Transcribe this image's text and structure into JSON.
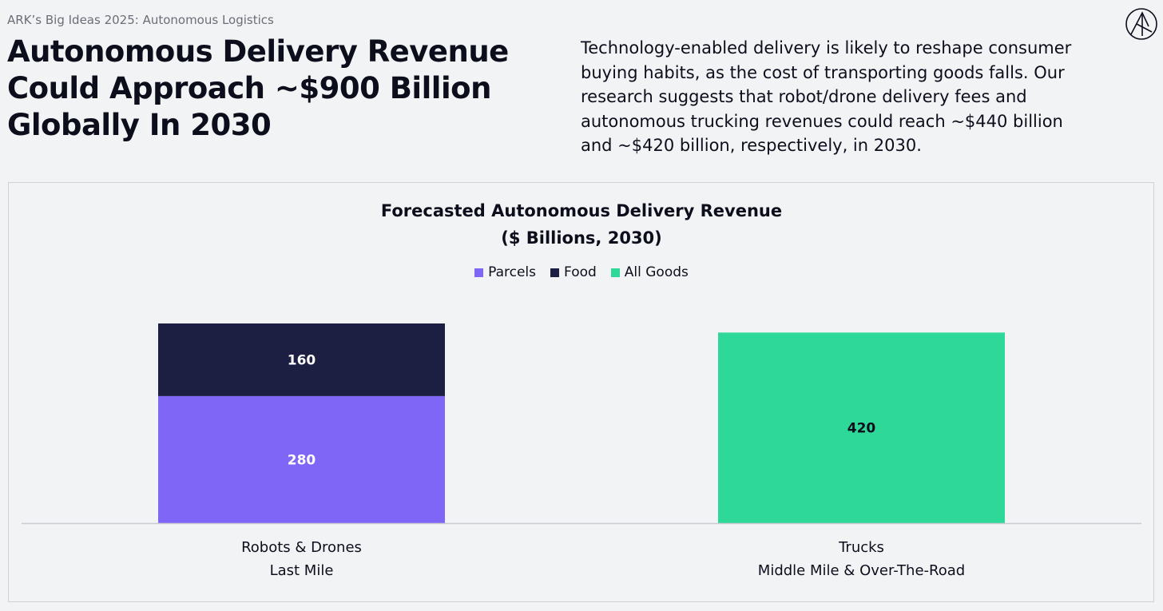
{
  "header": {
    "tag": "ARK’s Big Ideas 2025: Autonomous Logistics",
    "headline_lines": [
      "Autonomous Delivery Revenue",
      "Could Approach ~$900 Billion",
      "Globally In 2030"
    ],
    "summary_lines": [
      "Technology-enabled delivery is likely to reshape consumer",
      "buying habits, as the cost of transporting goods falls. Our",
      "research suggests that robot/drone delivery fees and",
      "autonomous trucking revenues could reach ~$440 billion",
      "and ~$420 billion, respectively, in 2030."
    ],
    "logo_icon": "ark-logo-icon"
  },
  "chart_data": {
    "type": "bar",
    "stacked": true,
    "title": "Forecasted Autonomous Delivery Revenue",
    "subtitle": "($ Billions, 2030)",
    "legend_position": "top-center",
    "grid": false,
    "ylim": [
      0,
      440
    ],
    "categories": [
      [
        "Robots & Drones",
        "Last Mile"
      ],
      [
        "Trucks",
        "Middle Mile & Over-The-Road"
      ]
    ],
    "series": [
      {
        "name": "Parcels",
        "color": "#8066f7",
        "values": [
          280,
          0
        ]
      },
      {
        "name": "Food",
        "color": "#1c1f42",
        "values": [
          160,
          0
        ]
      },
      {
        "name": "All Goods",
        "color": "#2ed898",
        "values": [
          0,
          420
        ]
      }
    ]
  }
}
